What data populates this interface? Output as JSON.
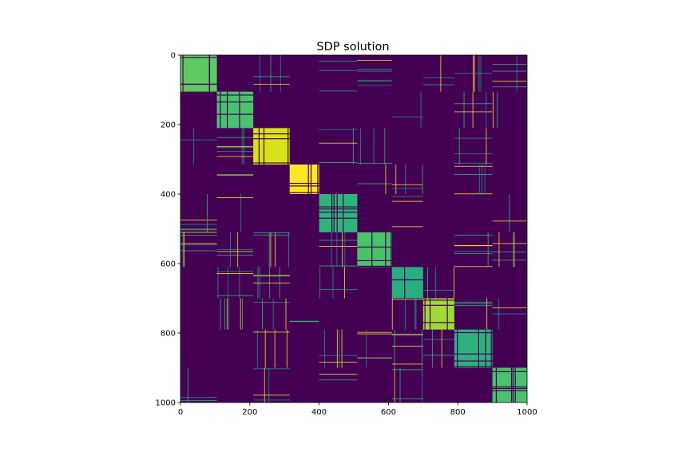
{
  "chart_data": {
    "type": "heatmap",
    "title": "SDP solution",
    "xlabel": "",
    "ylabel": "",
    "xlim": [
      0,
      1000
    ],
    "ylim": [
      1000,
      0
    ],
    "matrix_size": 1000,
    "x_ticks": [
      0,
      200,
      400,
      600,
      800,
      1000
    ],
    "y_ticks": [
      0,
      200,
      400,
      600,
      800,
      1000
    ],
    "colormap": "viridis",
    "background_color": "#440154",
    "grid": false,
    "blocks": [
      {
        "start": 0,
        "end": 105,
        "color": "#5ec962"
      },
      {
        "start": 105,
        "end": 210,
        "color": "#4ac16d"
      },
      {
        "start": 210,
        "end": 315,
        "color": "#d8e219"
      },
      {
        "start": 315,
        "end": 400,
        "color": "#fde725"
      },
      {
        "start": 400,
        "end": 510,
        "color": "#2fb47c"
      },
      {
        "start": 510,
        "end": 610,
        "color": "#4ac16d"
      },
      {
        "start": 610,
        "end": 700,
        "color": "#28ae80"
      },
      {
        "start": 700,
        "end": 790,
        "color": "#a0da39"
      },
      {
        "start": 790,
        "end": 900,
        "color": "#2db27d"
      },
      {
        "start": 900,
        "end": 1000,
        "color": "#4ac16d"
      }
    ]
  }
}
